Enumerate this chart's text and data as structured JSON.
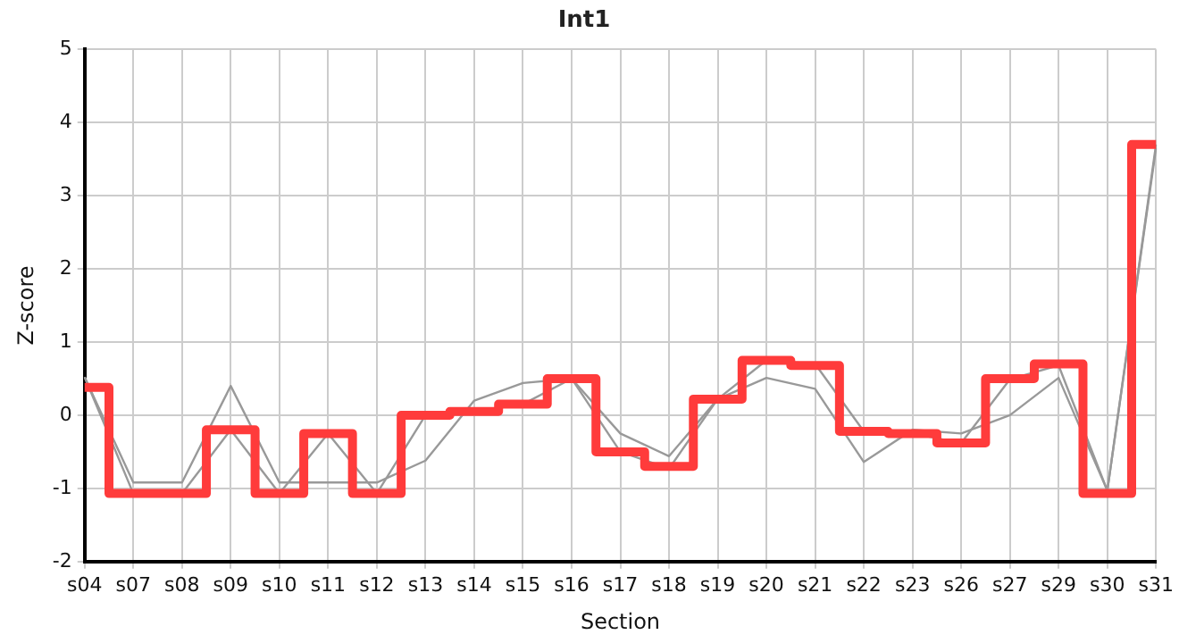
{
  "chart_data": {
    "type": "line",
    "title": "Int1",
    "xlabel": "Section",
    "ylabel": "Z-score",
    "categories": [
      "s04",
      "s07",
      "s08",
      "s09",
      "s10",
      "s11",
      "s12",
      "s13",
      "s14",
      "s15",
      "s16",
      "s17",
      "s18",
      "s19",
      "s20",
      "s21",
      "s22",
      "s23",
      "s26",
      "s27",
      "s29",
      "s30",
      "s31"
    ],
    "series": [
      {
        "type": "step",
        "color": "#ff3b3b",
        "values": [
          0.38,
          -1.07,
          -1.07,
          -0.2,
          -1.07,
          -0.25,
          -1.07,
          0.0,
          0.05,
          0.15,
          0.5,
          -0.5,
          -0.7,
          0.22,
          0.75,
          0.68,
          -0.22,
          -0.25,
          -0.38,
          0.5,
          0.7,
          -1.07,
          3.7
        ]
      },
      {
        "color": "#999999",
        "values": [
          0.52,
          -1.07,
          -1.07,
          -0.2,
          -1.07,
          -0.25,
          -1.07,
          0.0,
          0.05,
          0.15,
          0.5,
          -0.5,
          -0.73,
          0.22,
          0.75,
          0.7,
          -0.22,
          -0.25,
          -0.38,
          0.49,
          0.68,
          -1.03,
          3.7
        ]
      },
      {
        "color": "#999999",
        "values": [
          0.52,
          -0.92,
          -0.92,
          0.4,
          -0.92,
          -0.92,
          -0.92,
          -0.62,
          0.2,
          0.44,
          0.5,
          -0.25,
          -0.56,
          0.22,
          0.51,
          0.36,
          -0.64,
          -0.2,
          -0.25,
          0.0,
          0.51,
          -1.03,
          3.65
        ]
      }
    ],
    "ylim": [
      -2,
      5
    ],
    "yticks": [
      -2,
      -1,
      0,
      1,
      2,
      3,
      4,
      5
    ],
    "grid": true,
    "legend": false,
    "marker": "none"
  }
}
